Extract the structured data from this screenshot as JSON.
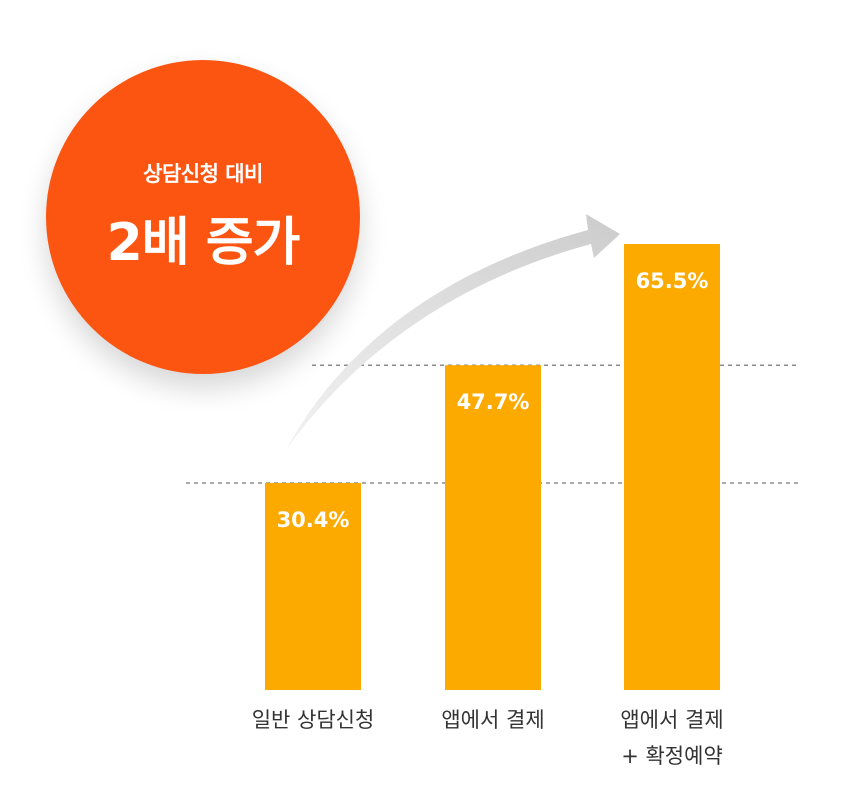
{
  "badge": {
    "subtitle": "상담신청 대비",
    "headline": "2배 증가"
  },
  "colors": {
    "bar": "#fdaa00",
    "badge": "#fc5512",
    "arrow": "#d4d4d4",
    "gridline": "#8c8c8c",
    "label": "#333333"
  },
  "chart_data": {
    "type": "bar",
    "categories": [
      [
        "일반 상담신청"
      ],
      [
        "앱에서 결제"
      ],
      [
        "앱에서 결제",
        "+ 확정예약"
      ]
    ],
    "values": [
      30.4,
      47.7,
      65.5
    ],
    "value_labels": [
      "30.4%",
      "47.7%",
      "65.5%"
    ],
    "reference_lines": [
      30.4,
      47.7
    ],
    "ylim": [
      0,
      65.5
    ],
    "grid": false,
    "title": "",
    "xlabel": "",
    "ylabel": ""
  }
}
